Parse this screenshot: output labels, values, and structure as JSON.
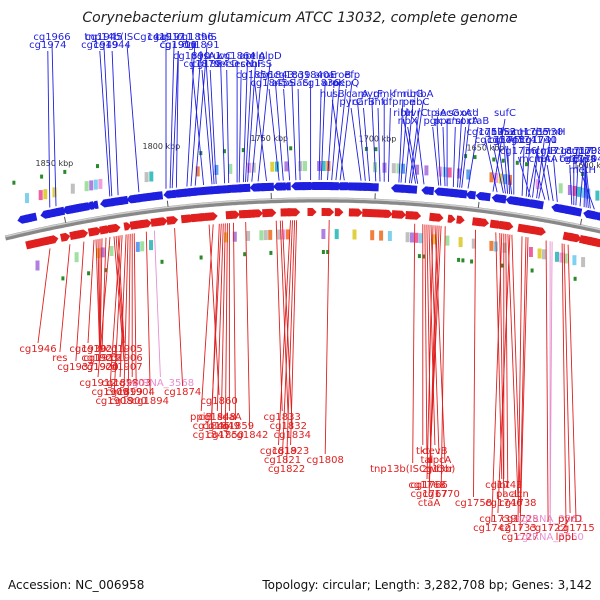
{
  "title": "Corynebacterium glutamicum ATCC 13032, complete genome",
  "footer": {
    "accession": "Accession: NC_006958",
    "summary": "Topology: circular; Length: 3,282,708 bp; Genes: 3,142"
  },
  "colors": {
    "forward": "#1f1fe0",
    "reverse": "#e01f1f",
    "rna": "#e890d0",
    "marker": "#2a8a2a",
    "backbone": "#888888"
  },
  "ticks": [
    {
      "label": "1850 kbp",
      "pos": 1850
    },
    {
      "label": "1800 kbp",
      "pos": 1800
    },
    {
      "label": "1750 kbp",
      "pos": 1750
    },
    {
      "label": "1700 kbp",
      "pos": 1700
    },
    {
      "label": "1650 kbp",
      "pos": 1650
    },
    {
      "label": "1600 kbp",
      "pos": 1600
    }
  ],
  "forward_labels": [
    {
      "text": "tnp14b(ISCg14a)",
      "pos": 1813
    },
    {
      "text": "cg1949",
      "pos": 1827
    },
    {
      "text": "cg1945",
      "pos": 1826
    },
    {
      "text": "cg1944",
      "pos": 1823
    },
    {
      "text": "cg1966",
      "pos": 1853
    },
    {
      "text": "cg1974",
      "pos": 1856
    },
    {
      "text": "cg1917",
      "pos": 1800
    },
    {
      "text": "cg1901",
      "pos": 1795
    },
    {
      "text": "cg1911",
      "pos": 1798
    },
    {
      "text": "cg1910",
      "pos": 1797
    },
    {
      "text": "cg1896",
      "pos": 1790
    },
    {
      "text": "cg1891",
      "pos": 1788
    },
    {
      "text": "thiS",
      "pos": 1786
    },
    {
      "text": "cg1890",
      "pos": 1782
    },
    {
      "text": "cg1879",
      "pos": 1778
    },
    {
      "text": "pgsA1",
      "pos": 1777
    },
    {
      "text": "cg1884",
      "pos": 1776
    },
    {
      "text": "ruvC",
      "pos": 1772
    },
    {
      "text": "secD",
      "pos": 1770
    },
    {
      "text": "cg1864",
      "pos": 1766
    },
    {
      "text": "secN",
      "pos": 1765
    },
    {
      "text": "apt",
      "pos": 1763
    },
    {
      "text": "secF",
      "pos": 1762
    },
    {
      "text": "relA",
      "pos": 1761
    },
    {
      "text": "hisS",
      "pos": 1759
    },
    {
      "text": "glpD",
      "pos": 1756
    },
    {
      "text": "cg1856",
      "pos": 1752
    },
    {
      "text": "cg1845",
      "pos": 1746
    },
    {
      "text": "cg1843",
      "pos": 1744
    },
    {
      "text": "aspS",
      "pos": 1741
    },
    {
      "text": "cg1839",
      "pos": 1738
    },
    {
      "text": "alaS",
      "pos": 1736
    },
    {
      "text": "cg1840",
      "pos": 1731
    },
    {
      "text": "cg1836",
      "pos": 1727
    },
    {
      "text": "aroE",
      "pos": 1726
    },
    {
      "text": "aroK",
      "pos": 1723
    },
    {
      "text": "aroB",
      "pos": 1721
    },
    {
      "text": "pepQ",
      "pos": 1719
    },
    {
      "text": "efp",
      "pos": 1717
    },
    {
      "text": "nusB",
      "pos": 1715
    },
    {
      "text": "pyrC",
      "pos": 1707
    },
    {
      "text": "carA",
      "pos": 1705
    },
    {
      "text": "carB",
      "pos": 1703
    },
    {
      "text": "pyrF",
      "pos": 1700
    },
    {
      "text": "ihf",
      "pos": 1698
    },
    {
      "text": "gmk",
      "pos": 1696
    },
    {
      "text": "dfp",
      "pos": 1694
    },
    {
      "text": "fmu",
      "pos": 1689
    },
    {
      "text": "rpe",
      "pos": 1688
    },
    {
      "text": "ribG",
      "pos": 1686
    },
    {
      "text": "ribC",
      "pos": 1684
    },
    {
      "text": "ribA",
      "pos": 1683
    },
    {
      "text": "ribH",
      "pos": 1681
    },
    {
      "text": "ribX",
      "pos": 1680
    },
    {
      "text": "uvrC",
      "pos": 1677
    },
    {
      "text": "pgk",
      "pos": 1670
    },
    {
      "text": "tpiA",
      "pos": 1669
    },
    {
      "text": "ppc",
      "pos": 1667
    },
    {
      "text": "secG",
      "pos": 1666
    },
    {
      "text": "amt",
      "pos": 1663
    },
    {
      "text": "soxA'",
      "pos": 1661
    },
    {
      "text": "'soxA",
      "pos": 1660
    },
    {
      "text": "ocd",
      "pos": 1659
    },
    {
      "text": "ctaB",
      "pos": 1656
    },
    {
      "text": "sufC",
      "pos": 1644
    },
    {
      "text": "cg1759",
      "pos": 1642
    },
    {
      "text": "cg1754",
      "pos": 1639
    },
    {
      "text": "cg1753",
      "pos": 1638
    },
    {
      "text": "cg1745",
      "pos": 1635
    },
    {
      "text": "nifS2",
      "pos": 1637
    },
    {
      "text": "cg1751",
      "pos": 1636
    },
    {
      "text": "nanH",
      "pos": 1634
    },
    {
      "text": "cg1741",
      "pos": 1630
    },
    {
      "text": "cg1735",
      "pos": 1628
    },
    {
      "text": "cg1731",
      "pos": 1625
    },
    {
      "text": "cg1730",
      "pos": 1623
    },
    {
      "text": "cg1740",
      "pos": 1627
    },
    {
      "text": "hemH",
      "pos": 1622
    },
    {
      "text": "cg1736",
      "pos": 1626
    },
    {
      "text": "mcmA",
      "pos": 1619
    },
    {
      "text": "mcmB",
      "pos": 1617
    },
    {
      "text": "tetA",
      "pos": 1615
    },
    {
      "text": "cg1718",
      "pos": 1613
    },
    {
      "text": "tetB",
      "pos": 1606
    },
    {
      "text": "cg1717",
      "pos": 1605
    },
    {
      "text": "cg1714",
      "pos": 1604
    },
    {
      "text": "uppP",
      "pos": 1602
    },
    {
      "text": "cysS",
      "pos": 1600
    },
    {
      "text": "cg1708",
      "pos": 1599
    },
    {
      "text": "cg1704",
      "pos": 1598
    },
    {
      "text": "cg1703",
      "pos": 1597
    },
    {
      "text": "metH",
      "pos": 1595
    }
  ],
  "reverse_labels": [
    {
      "text": "cg1946",
      "pos": 1860,
      "color": "reverse"
    },
    {
      "text": "res",
      "pos": 1850,
      "color": "reverse"
    },
    {
      "text": "cg1937",
      "pos": 1843,
      "color": "reverse"
    },
    {
      "text": "cg1930",
      "pos": 1838,
      "color": "reverse"
    },
    {
      "text": "cg1919",
      "pos": 1832,
      "color": "reverse"
    },
    {
      "text": "cg1920",
      "pos": 1834,
      "color": "reverse"
    },
    {
      "text": "cg1921",
      "pos": 1835,
      "color": "reverse"
    },
    {
      "text": "cg1923",
      "pos": 1836,
      "color": "reverse"
    },
    {
      "text": "cg1924",
      "pos": 1837,
      "color": "reverse"
    },
    {
      "text": "cg1905",
      "pos": 1826,
      "color": "reverse"
    },
    {
      "text": "cg1906",
      "pos": 1827,
      "color": "reverse"
    },
    {
      "text": "cg1907",
      "pos": 1828,
      "color": "reverse"
    },
    {
      "text": "cg1912",
      "pos": 1830,
      "color": "reverse"
    },
    {
      "text": "cg1909",
      "pos": 1825,
      "color": "reverse"
    },
    {
      "text": "cg1908",
      "pos": 1824,
      "color": "reverse"
    },
    {
      "text": "cg1898",
      "pos": 1822,
      "color": "reverse"
    },
    {
      "text": "cg1899",
      "pos": 1821,
      "color": "reverse"
    },
    {
      "text": "cg1900",
      "pos": 1820,
      "color": "reverse"
    },
    {
      "text": "cg1903",
      "pos": 1819,
      "color": "reverse"
    },
    {
      "text": "cg1904",
      "pos": 1818,
      "color": "reverse"
    },
    {
      "text": "cg1894",
      "pos": 1812,
      "color": "reverse"
    },
    {
      "text": "cgtRNA_3568",
      "pos": 1808,
      "color": "rna"
    },
    {
      "text": "cg1874",
      "pos": 1798,
      "color": "reverse"
    },
    {
      "text": "cg1860",
      "pos": 1781,
      "color": "reverse"
    },
    {
      "text": "ppiB",
      "pos": 1779,
      "color": "reverse"
    },
    {
      "text": "cg1846",
      "pos": 1775,
      "color": "reverse"
    },
    {
      "text": "cg1847",
      "pos": 1776,
      "color": "reverse"
    },
    {
      "text": "cg1848",
      "pos": 1774,
      "color": "reverse"
    },
    {
      "text": "cg1849",
      "pos": 1773,
      "color": "reverse"
    },
    {
      "text": "cg1850",
      "pos": 1772,
      "color": "reverse"
    },
    {
      "text": "sdaA",
      "pos": 1771,
      "color": "reverse"
    },
    {
      "text": "cg1859",
      "pos": 1769,
      "color": "reverse"
    },
    {
      "text": "cg1842",
      "pos": 1763,
      "color": "reverse"
    },
    {
      "text": "cg1833",
      "pos": 1748,
      "color": "reverse"
    },
    {
      "text": "cg1832",
      "pos": 1746,
      "color": "reverse"
    },
    {
      "text": "cg1834",
      "pos": 1745,
      "color": "reverse"
    },
    {
      "text": "cg1819",
      "pos": 1741,
      "color": "reverse"
    },
    {
      "text": "cg1821",
      "pos": 1740,
      "color": "reverse"
    },
    {
      "text": "cg1822",
      "pos": 1739,
      "color": "reverse"
    },
    {
      "text": "cg1823",
      "pos": 1738,
      "color": "reverse"
    },
    {
      "text": "cg1808",
      "pos": 1722,
      "color": "reverse"
    },
    {
      "text": "tnp13b(ISCg13b)",
      "pos": 1680,
      "color": "reverse"
    },
    {
      "text": "tkt",
      "pos": 1676,
      "color": "reverse"
    },
    {
      "text": "tal",
      "pos": 1675,
      "color": "reverse"
    },
    {
      "text": "zwf",
      "pos": 1674,
      "color": "reverse"
    },
    {
      "text": "devB",
      "pos": 1673,
      "color": "reverse"
    },
    {
      "text": "opcA",
      "pos": 1672,
      "color": "reverse"
    },
    {
      "text": "qor",
      "pos": 1670,
      "color": "reverse"
    },
    {
      "text": "cg1766",
      "pos": 1667,
      "color": "reverse"
    },
    {
      "text": "cg1767",
      "pos": 1668,
      "color": "reverse"
    },
    {
      "text": "ctaA",
      "pos": 1669,
      "color": "reverse"
    },
    {
      "text": "cg1768",
      "pos": 1671,
      "color": "reverse"
    },
    {
      "text": "cg1770",
      "pos": 1665,
      "color": "reverse"
    },
    {
      "text": "cg1758",
      "pos": 1650,
      "color": "reverse"
    },
    {
      "text": "cg1743",
      "pos": 1636,
      "color": "reverse"
    },
    {
      "text": "pacL",
      "pos": 1635,
      "color": "reverse"
    },
    {
      "text": "cg1746",
      "pos": 1638,
      "color": "reverse"
    },
    {
      "text": "'int",
      "pos": 1640,
      "color": "reverse"
    },
    {
      "text": "acn",
      "pos": 1632,
      "color": "reverse"
    },
    {
      "text": "cg1738",
      "pos": 1634,
      "color": "reverse"
    },
    {
      "text": "cg1739",
      "pos": 1633,
      "color": "reverse"
    },
    {
      "text": "cg1742",
      "pos": 1637,
      "color": "reverse"
    },
    {
      "text": "cg1727",
      "pos": 1624,
      "color": "reverse"
    },
    {
      "text": "cg1728",
      "pos": 1625,
      "color": "reverse"
    },
    {
      "text": "cg1733",
      "pos": 1627,
      "color": "reverse"
    },
    {
      "text": "cgtRNA_3560",
      "pos": 1612,
      "color": "rna"
    },
    {
      "text": "cgtRNA_3561",
      "pos": 1613,
      "color": "rna"
    },
    {
      "text": "cg1722",
      "pos": 1615,
      "color": "reverse"
    },
    {
      "text": "lppL",
      "pos": 1607,
      "color": "reverse"
    },
    {
      "text": "pyrD",
      "pos": 1606,
      "color": "reverse"
    },
    {
      "text": "cg1715",
      "pos": 1604,
      "color": "reverse"
    }
  ]
}
